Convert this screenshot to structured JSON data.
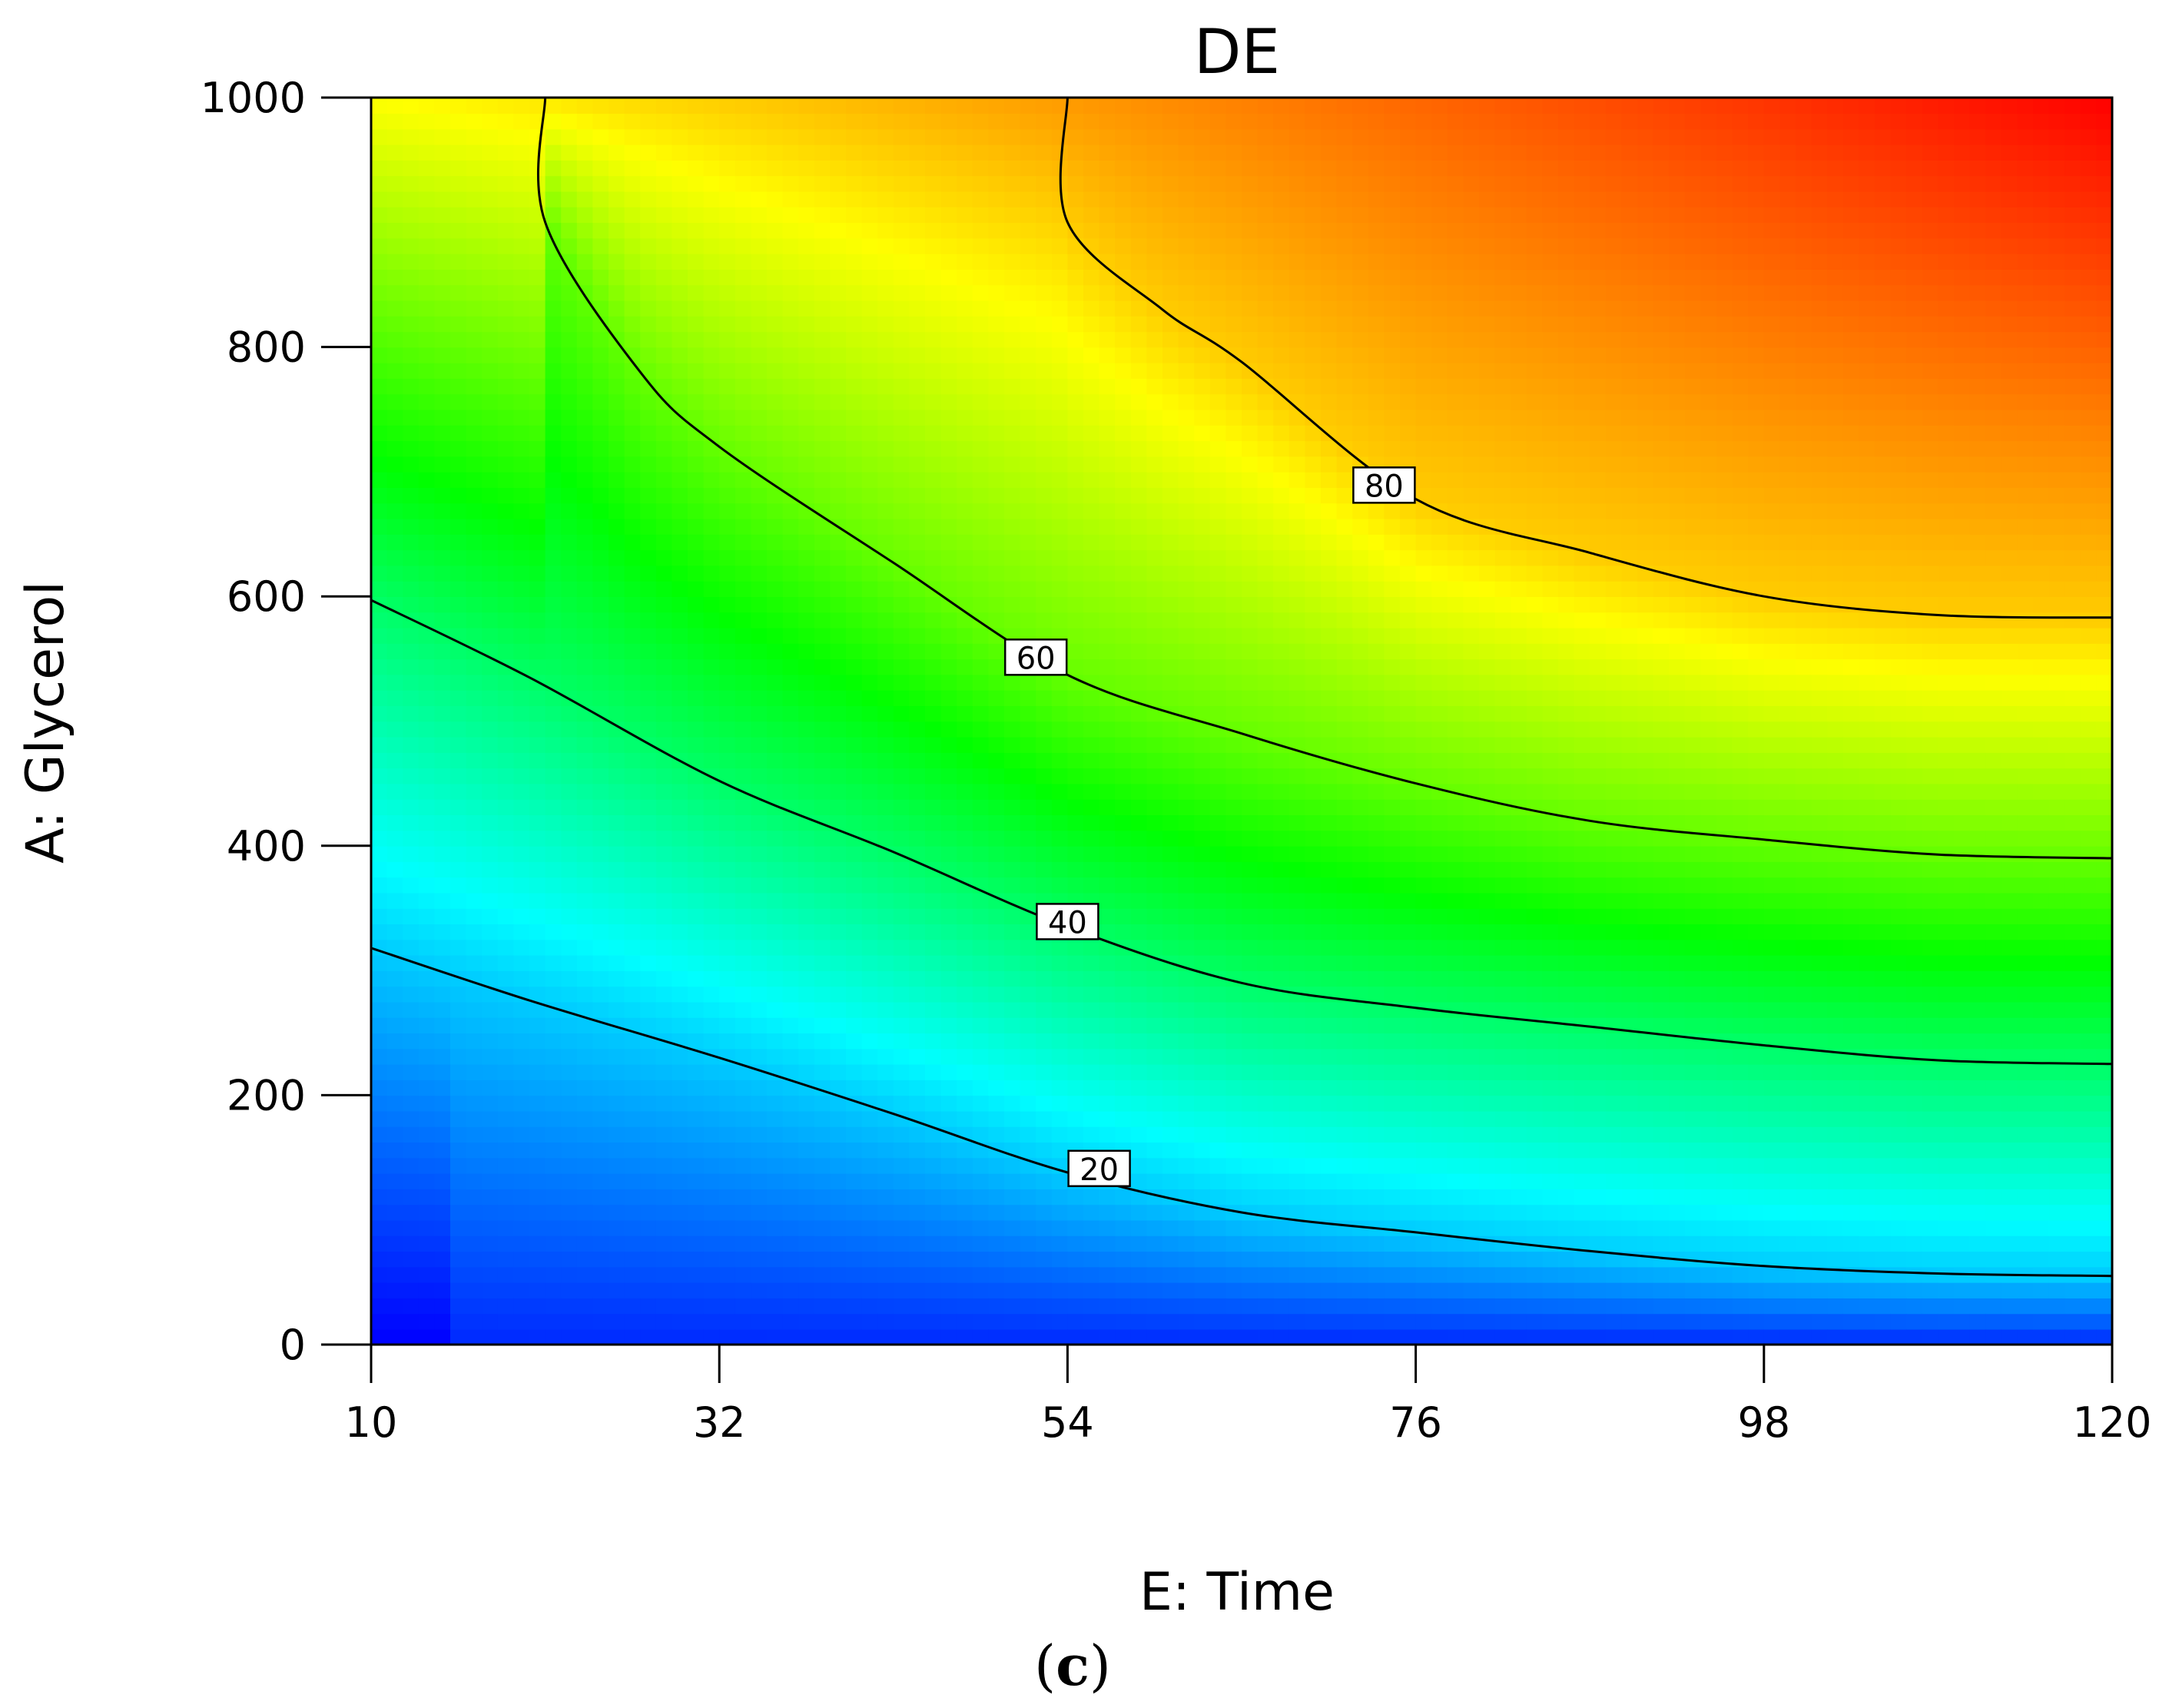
{
  "chart_data": {
    "type": "heatmap",
    "subtype": "contour",
    "title": "DE",
    "xlabel": "E: Time",
    "ylabel": "A: Glycerol",
    "caption_letter": "c",
    "xlim": [
      10,
      120
    ],
    "ylim": [
      0,
      1000
    ],
    "x_ticks": [
      "10",
      "32",
      "54",
      "76",
      "98",
      "120"
    ],
    "y_ticks": [
      "0",
      "200",
      "400",
      "600",
      "800",
      "1000"
    ],
    "colorscale": [
      "#0000ff",
      "#00ffff",
      "#00ff00",
      "#ffff00",
      "#ff0000"
    ],
    "zlim": [
      0,
      100
    ],
    "contours": [
      {
        "level": "20",
        "points": [
          [
            10,
            318
          ],
          [
            20,
            276
          ],
          [
            32,
            230
          ],
          [
            43,
            185
          ],
          [
            54,
            138
          ],
          [
            65,
            106
          ],
          [
            76,
            90
          ],
          [
            87,
            75
          ],
          [
            98,
            63
          ],
          [
            109,
            57
          ],
          [
            120,
            55
          ]
        ],
        "label_at": [
          56,
          140
        ]
      },
      {
        "level": "40",
        "points": [
          [
            10,
            597
          ],
          [
            20,
            535
          ],
          [
            32,
            452
          ],
          [
            43,
            395
          ],
          [
            54,
            335
          ],
          [
            65,
            290
          ],
          [
            76,
            270
          ],
          [
            87,
            255
          ],
          [
            98,
            240
          ],
          [
            109,
            228
          ],
          [
            120,
            225
          ]
        ],
        "label_at": [
          54,
          338
        ]
      },
      {
        "level": "60",
        "points": [
          [
            21,
            1000
          ],
          [
            21,
            900
          ],
          [
            27,
            780
          ],
          [
            32,
            720
          ],
          [
            43,
            627
          ],
          [
            54,
            537
          ],
          [
            65,
            490
          ],
          [
            76,
            450
          ],
          [
            87,
            420
          ],
          [
            98,
            405
          ],
          [
            109,
            393
          ],
          [
            120,
            390
          ]
        ],
        "label_at": [
          52,
          550
        ]
      },
      {
        "level": "80",
        "points": [
          [
            54,
            1000
          ],
          [
            54,
            900
          ],
          [
            60,
            830
          ],
          [
            65,
            788
          ],
          [
            76,
            678
          ],
          [
            87,
            635
          ],
          [
            98,
            600
          ],
          [
            109,
            585
          ],
          [
            120,
            583
          ]
        ],
        "label_at": [
          74,
          688
        ]
      }
    ]
  }
}
